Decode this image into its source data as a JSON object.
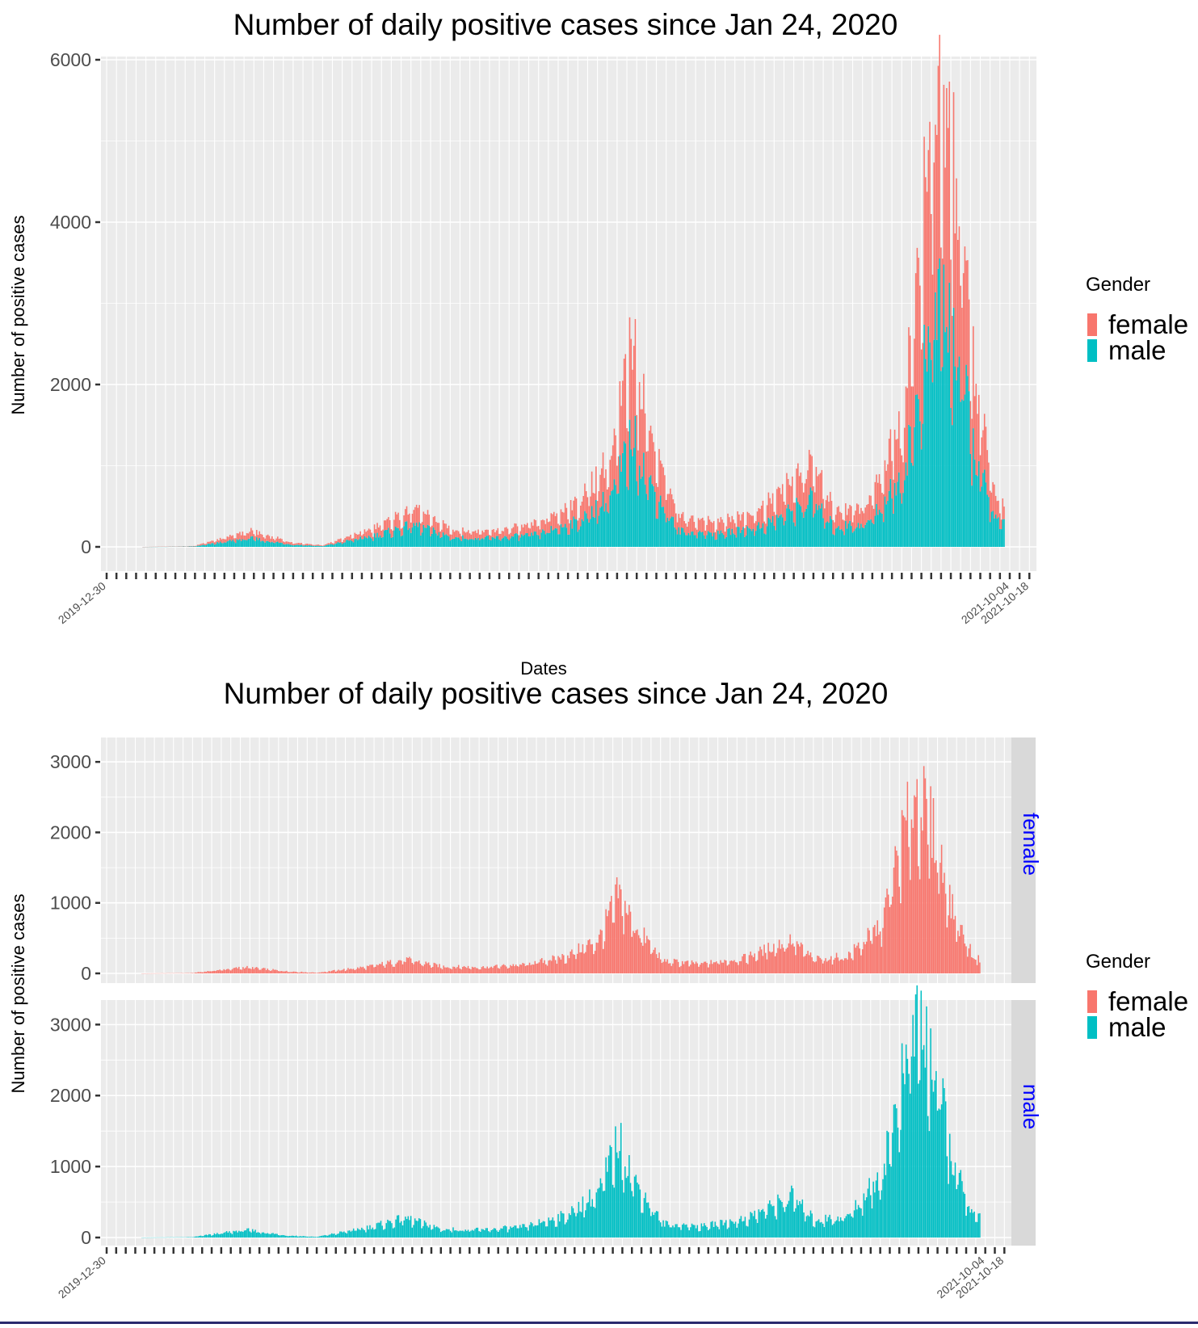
{
  "figures": [
    {
      "title": "Number of daily positive cases since Jan 24, 2020",
      "xlabel": "Dates",
      "ylabel": "Number of positive cases",
      "legend_title": "Gender"
    },
    {
      "title": "Number of daily positive cases since Jan 24, 2020",
      "ylabel": "Number of positive cases",
      "legend_title": "Gender",
      "facet_labels": [
        "female",
        "male"
      ]
    }
  ],
  "colors": {
    "female": "#F8766D",
    "male": "#00BFC4",
    "facet_text": "#0000FF",
    "strip_bg": "#D9D9D9"
  },
  "chart_data": [
    {
      "type": "bar",
      "stacked": true,
      "title": "Number of daily positive cases since Jan 24, 2020",
      "xlabel": "Dates",
      "ylabel": "Number of positive cases",
      "ylim": [
        0,
        6000
      ],
      "yticks": [
        0,
        2000,
        4000,
        6000
      ],
      "grid": true,
      "legend": {
        "title": "Gender",
        "entries": [
          "female",
          "male"
        ],
        "position": "right"
      },
      "x_range": [
        "2019-12-30",
        "2021-10-18"
      ],
      "x_tick_labels": [
        "2019-12-30",
        "2021-10-04",
        "2021-10-18"
      ],
      "series": [
        {
          "name": "female",
          "key_points": [
            [
              "2020-01-24",
              0
            ],
            [
              "2020-03-01",
              5
            ],
            [
              "2020-04-10",
              90
            ],
            [
              "2020-04-25",
              60
            ],
            [
              "2020-05-10",
              30
            ],
            [
              "2020-06-01",
              10
            ],
            [
              "2020-07-10",
              100
            ],
            [
              "2020-08-05",
              200
            ],
            [
              "2020-09-01",
              100
            ],
            [
              "2020-10-01",
              90
            ],
            [
              "2020-11-01",
              130
            ],
            [
              "2020-12-01",
              250
            ],
            [
              "2020-12-25",
              500
            ],
            [
              "2021-01-08",
              1150
            ],
            [
              "2021-01-20",
              700
            ],
            [
              "2021-02-10",
              180
            ],
            [
              "2021-03-10",
              140
            ],
            [
              "2021-04-10",
              220
            ],
            [
              "2021-05-01",
              380
            ],
            [
              "2021-05-15",
              480
            ],
            [
              "2021-06-01",
              200
            ],
            [
              "2021-06-25",
              250
            ],
            [
              "2021-07-20",
              700
            ],
            [
              "2021-08-05",
              2000
            ],
            [
              "2021-08-15",
              2600
            ],
            [
              "2021-08-28",
              2000
            ],
            [
              "2021-09-10",
              900
            ],
            [
              "2021-09-25",
              250
            ],
            [
              "2021-09-30",
              200
            ]
          ]
        },
        {
          "name": "male",
          "key_points": [
            [
              "2020-01-24",
              0
            ],
            [
              "2020-03-01",
              5
            ],
            [
              "2020-04-10",
              110
            ],
            [
              "2020-04-25",
              70
            ],
            [
              "2020-05-10",
              30
            ],
            [
              "2020-06-01",
              10
            ],
            [
              "2020-07-10",
              150
            ],
            [
              "2020-08-05",
              280
            ],
            [
              "2020-09-01",
              120
            ],
            [
              "2020-10-01",
              110
            ],
            [
              "2020-11-01",
              160
            ],
            [
              "2020-12-01",
              320
            ],
            [
              "2020-12-25",
              650
            ],
            [
              "2021-01-08",
              1400
            ],
            [
              "2021-01-20",
              800
            ],
            [
              "2021-02-10",
              200
            ],
            [
              "2021-03-10",
              160
            ],
            [
              "2021-04-10",
              260
            ],
            [
              "2021-05-01",
              450
            ],
            [
              "2021-05-15",
              600
            ],
            [
              "2021-06-01",
              250
            ],
            [
              "2021-06-25",
              300
            ],
            [
              "2021-07-20",
              900
            ],
            [
              "2021-08-05",
              2300
            ],
            [
              "2021-08-15",
              3200
            ],
            [
              "2021-08-28",
              2400
            ],
            [
              "2021-09-10",
              1100
            ],
            [
              "2021-09-25",
              300
            ],
            [
              "2021-09-30",
              300
            ]
          ]
        }
      ]
    },
    {
      "type": "bar",
      "faceted": true,
      "title": "Number of daily positive cases since Jan 24, 2020",
      "ylabel": "Number of positive cases",
      "ylim": [
        0,
        3300
      ],
      "yticks": [
        0,
        1000,
        2000,
        3000
      ],
      "grid": true,
      "legend": {
        "title": "Gender",
        "entries": [
          "female",
          "male"
        ],
        "position": "right"
      },
      "facets": [
        "female",
        "male"
      ],
      "x_range": [
        "2019-12-30",
        "2021-10-18"
      ],
      "x_tick_labels": [
        "2019-12-30",
        "2021-10-04",
        "2021-10-18"
      ],
      "series_ref": "same as chart_data[0].series"
    }
  ]
}
